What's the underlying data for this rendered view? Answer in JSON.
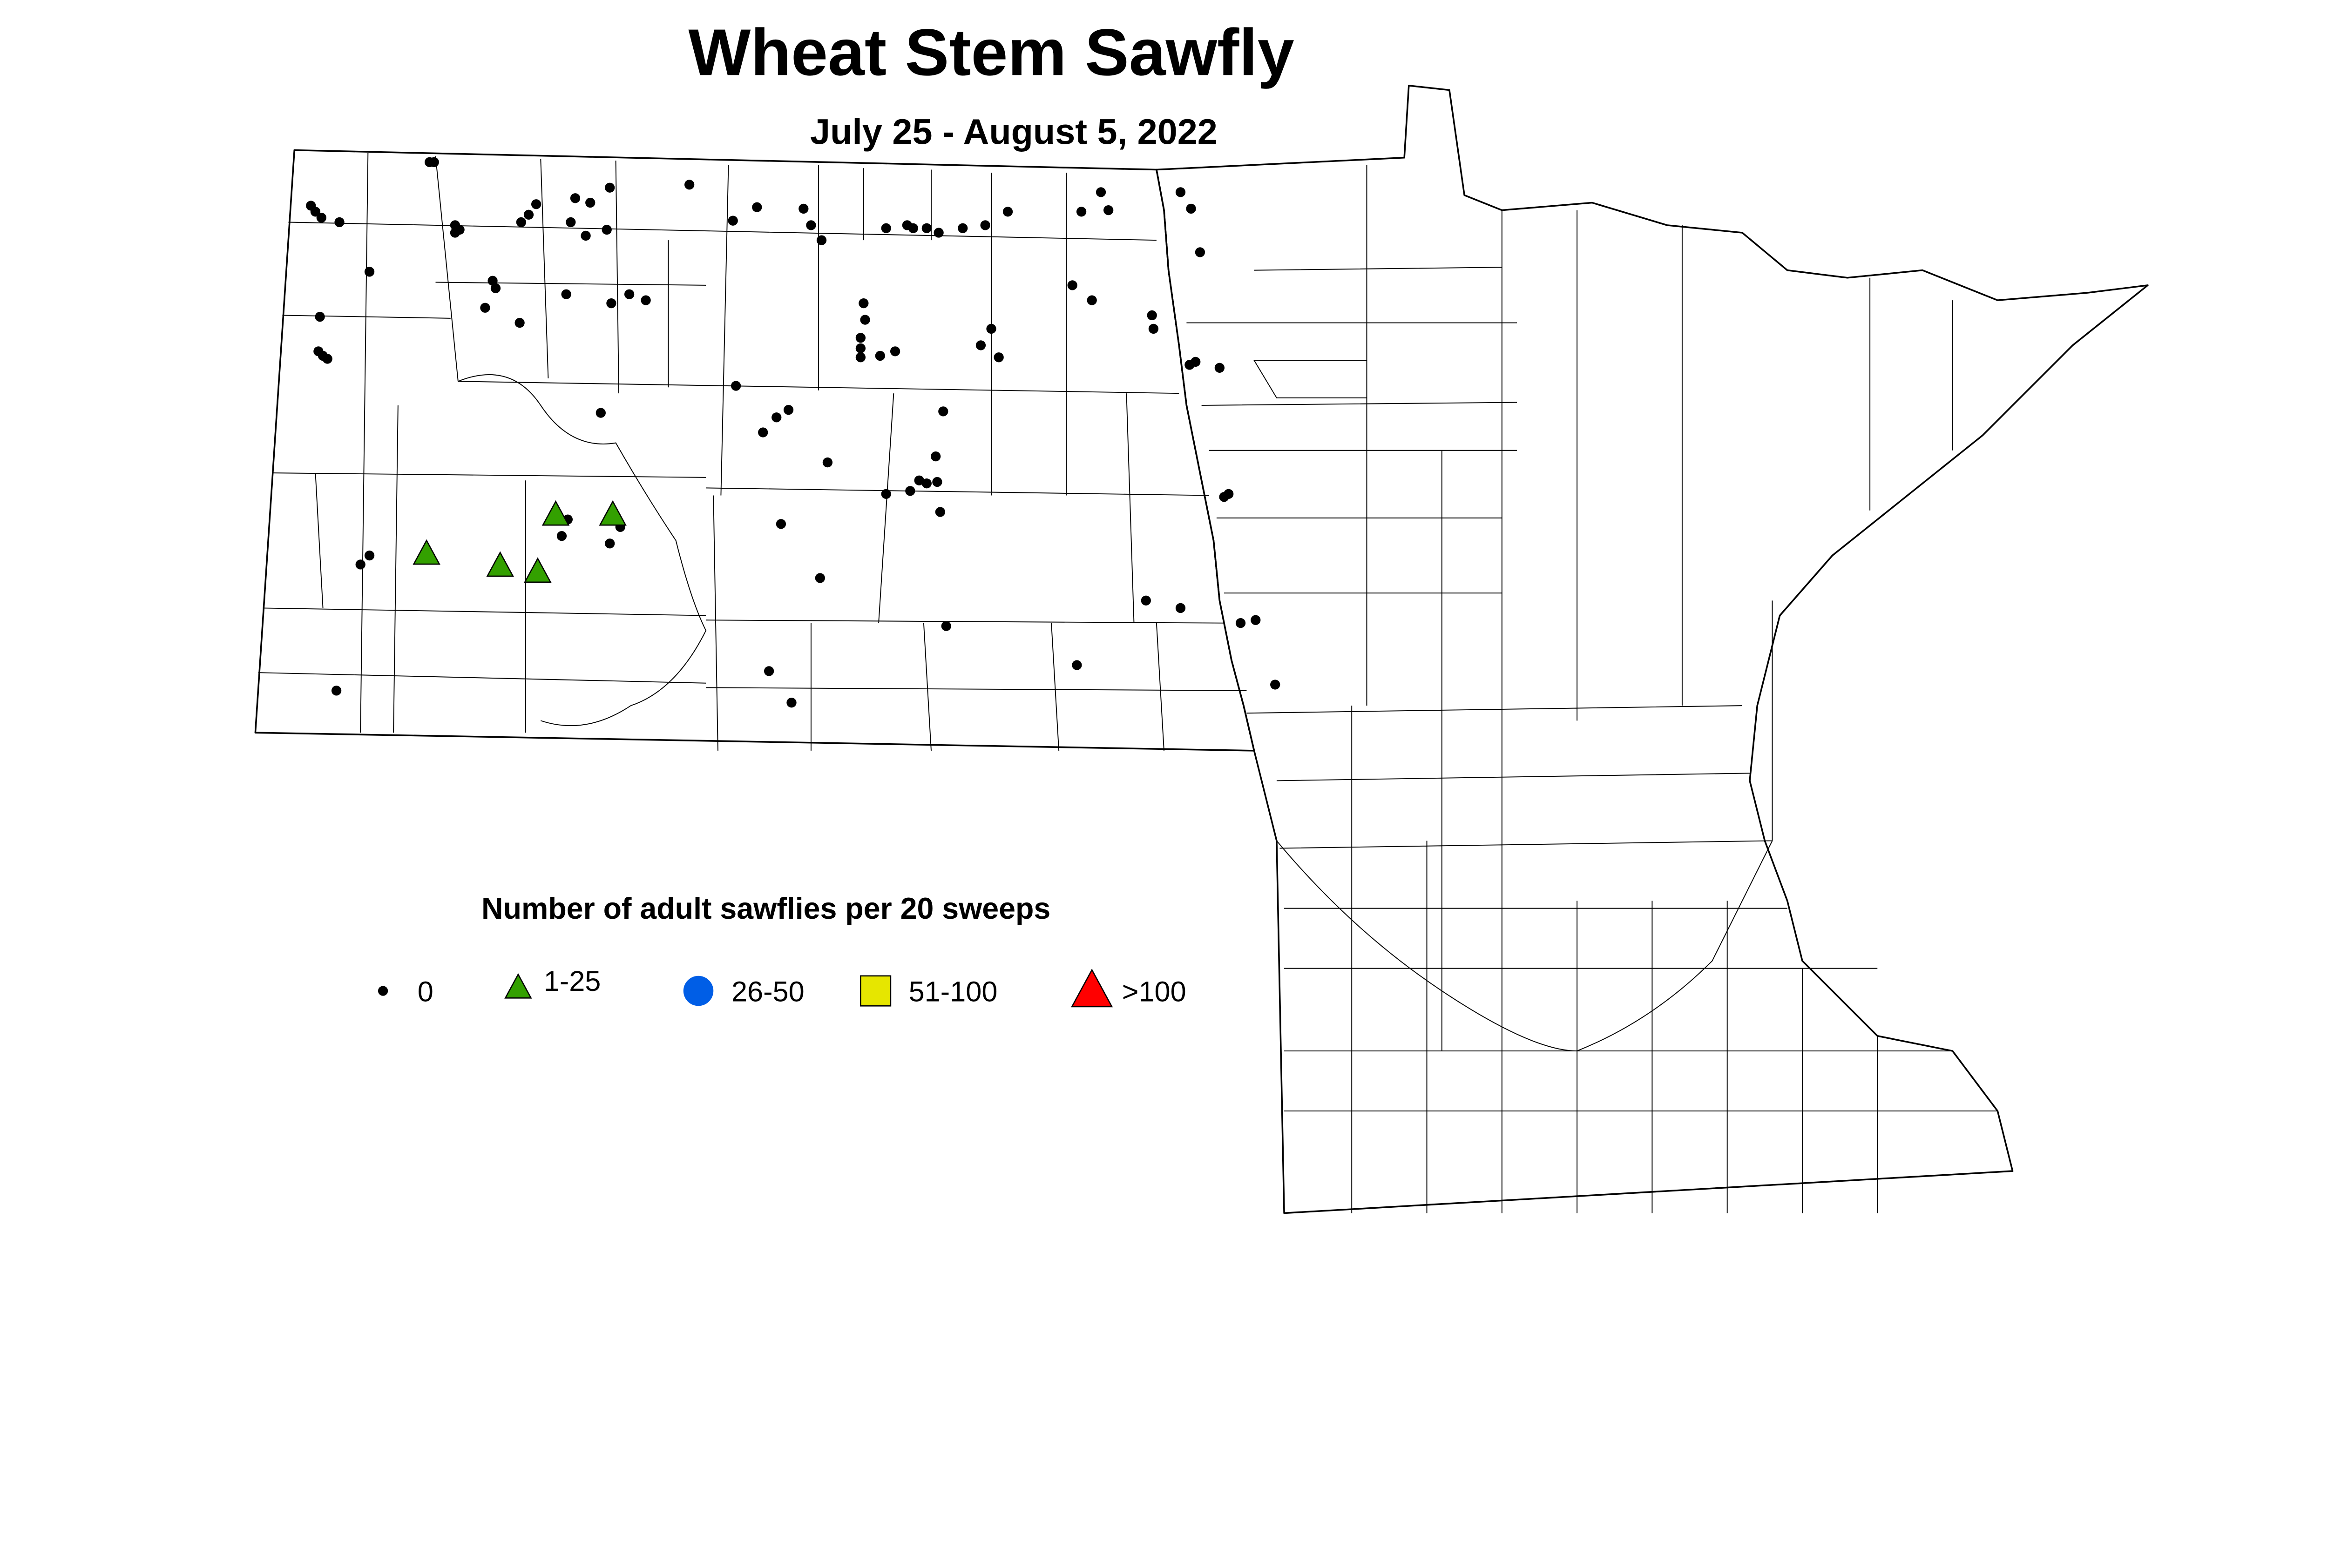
{
  "title": "Wheat Stem Sawfly",
  "subtitle": "July 25 - August 5, 2022",
  "legend": {
    "title": "Number of adult sawflies per 20 sweeps",
    "items": [
      {
        "label": "0",
        "shape": "dot",
        "color": "#000000"
      },
      {
        "label": "1-25",
        "shape": "triangle",
        "color": "#33a000"
      },
      {
        "label": "26-50",
        "shape": "circle",
        "color": "#005ee6"
      },
      {
        "label": "51-100",
        "shape": "square",
        "color": "#e6e600"
      },
      {
        "label": ">100",
        "shape": "triangle",
        "color": "#ff0000"
      }
    ]
  }
}
